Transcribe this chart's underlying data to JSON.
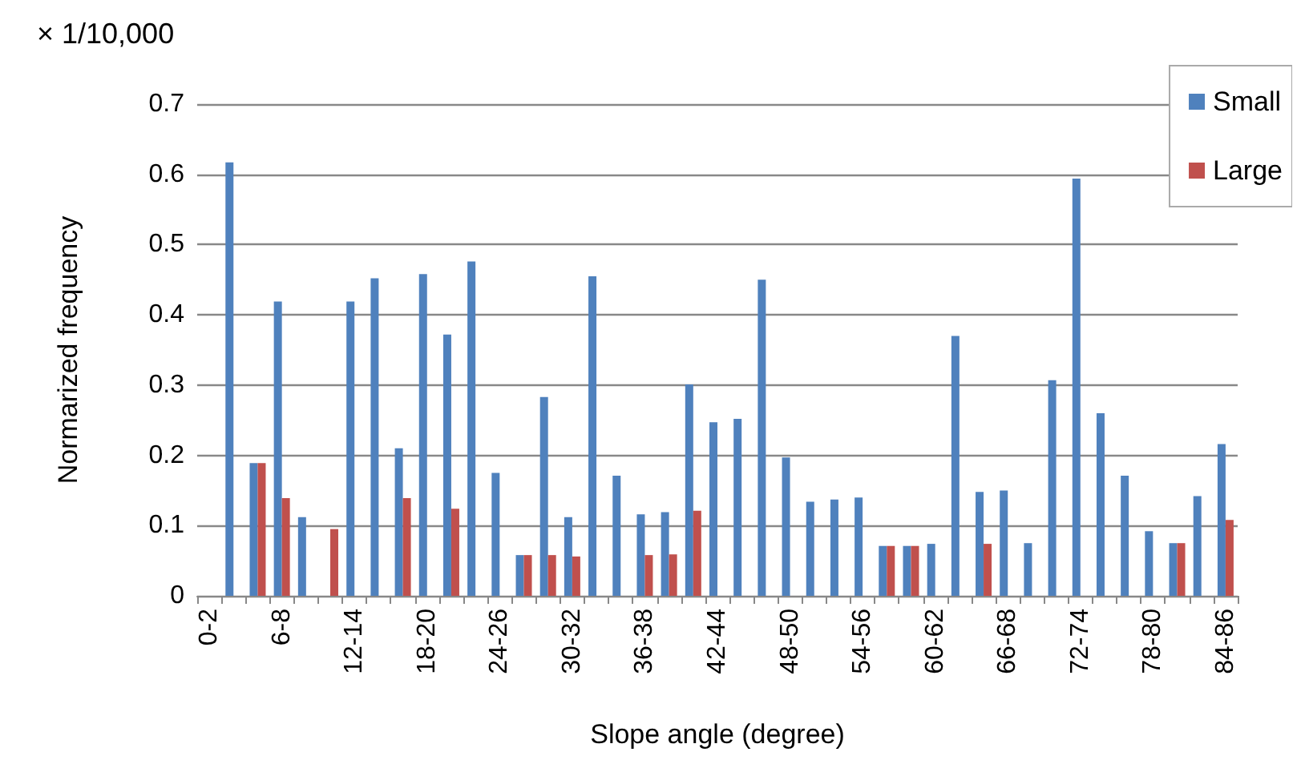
{
  "chart_data": {
    "type": "bar",
    "xlabel": "Slope angle (degree)",
    "ylabel": "Normarized frequency",
    "annotations": [
      "× 1/10,000"
    ],
    "categories": [
      "0-2",
      null,
      null,
      "6-8",
      null,
      null,
      "12-14",
      null,
      null,
      "18-20",
      null,
      null,
      "24-26",
      null,
      null,
      "30-32",
      null,
      null,
      "36-38",
      null,
      null,
      "42-44",
      null,
      null,
      "48-50",
      null,
      null,
      "54-56",
      null,
      null,
      "60-62",
      null,
      null,
      "66-68",
      null,
      null,
      "72-74",
      null,
      null,
      "78-80",
      null,
      null,
      "84-86"
    ],
    "series": [
      {
        "name": "Small",
        "color": "#4f81bd",
        "values": [
          0,
          0.617,
          0.189,
          0.419,
          0.112,
          0,
          0.419,
          0.452,
          0.21,
          0.458,
          0.372,
          0.476,
          0.175,
          0.058,
          0.283,
          0.112,
          0.455,
          0.171,
          0.116,
          0.119,
          0.301,
          0.247,
          0.252,
          0.45,
          0.197,
          0.134,
          0.137,
          0.14,
          0.071,
          0.071,
          0.074,
          0.37,
          0.148,
          0.15,
          0.075,
          0.307,
          0.594,
          0.26,
          0.171,
          0.092,
          0.075,
          0.142,
          0.216
        ]
      },
      {
        "name": "Large",
        "color": "#c0504d",
        "values": [
          0,
          0,
          0.189,
          0.139,
          0,
          0.095,
          0,
          0,
          0.139,
          0,
          0.124,
          0,
          0,
          0.058,
          0.058,
          0.056,
          0,
          0,
          0.058,
          0.059,
          0.121,
          0,
          0,
          0,
          0,
          0,
          0,
          0,
          0.071,
          0.071,
          0,
          0,
          0.074,
          0,
          0,
          0,
          0,
          0,
          0,
          0,
          0.075,
          0,
          0.108
        ]
      }
    ],
    "ylim": [
      0,
      0.7
    ],
    "yticks": [
      0,
      0.1,
      0.2,
      0.3,
      0.4,
      0.5,
      0.6,
      0.7
    ],
    "grid": "y",
    "legend": "top right"
  }
}
